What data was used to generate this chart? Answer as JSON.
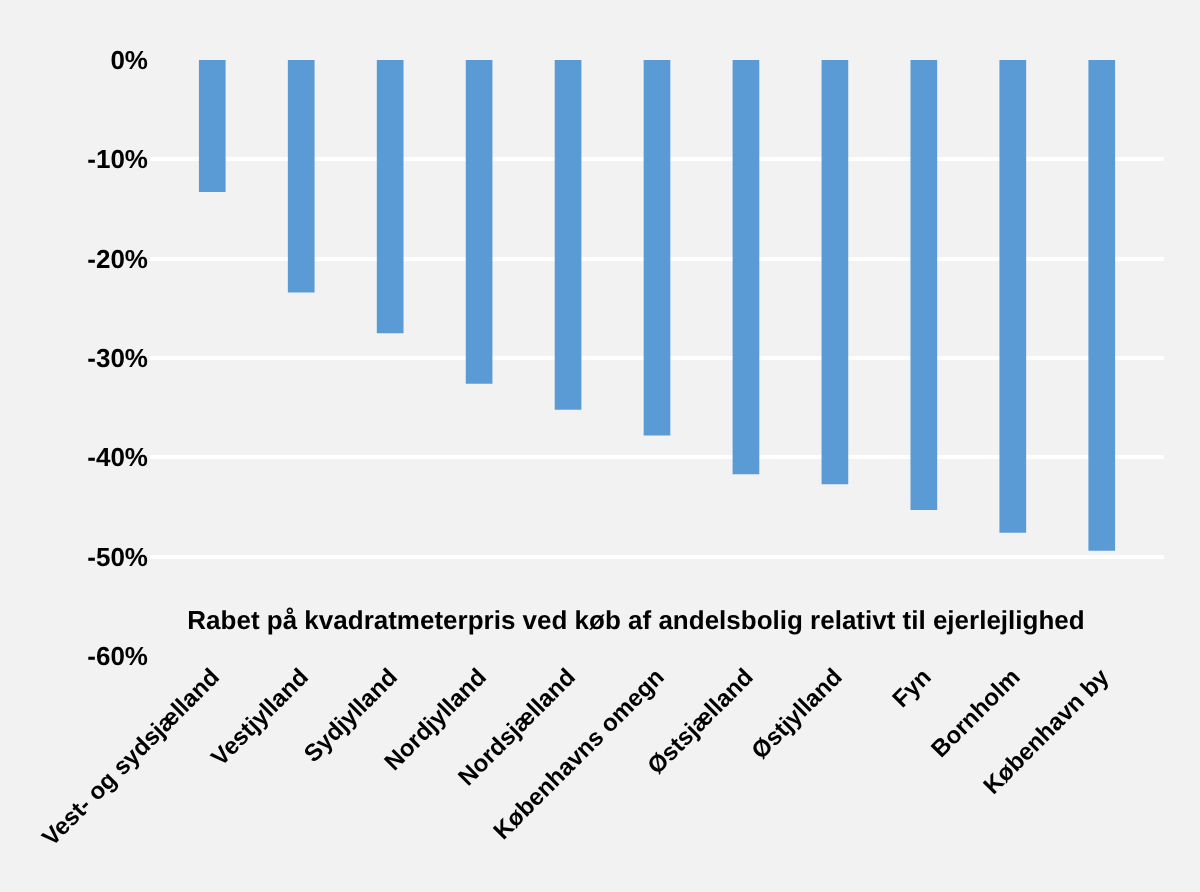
{
  "chart_data": {
    "type": "bar",
    "title": "Rabet på kvadratmeterpris ved køb af andelsbolig relativt til ejerlejlighed",
    "categories": [
      "Vest- og sydsjælland",
      "Vestjylland",
      "Sydjylland",
      "Nordjylland",
      "Nordsjælland",
      "Københavns omegn",
      "Østsjælland",
      "Østjylland",
      "Fyn",
      "Bornholm",
      "København by"
    ],
    "values": [
      -13.3,
      -23.4,
      -27.5,
      -32.6,
      -35.2,
      -37.8,
      -41.7,
      -42.7,
      -45.3,
      -47.6,
      -49.4
    ],
    "color": "#5b9bd5",
    "ylim": [
      -60,
      0
    ],
    "yticks": [
      {
        "value": 0,
        "label": "0%"
      },
      {
        "value": -10,
        "label": "-10%"
      },
      {
        "value": -20,
        "label": "-20%"
      },
      {
        "value": -30,
        "label": "-30%"
      },
      {
        "value": -40,
        "label": "-40%"
      },
      {
        "value": -50,
        "label": "-50%"
      },
      {
        "value": -60,
        "label": "-60%"
      }
    ],
    "grid": "y",
    "legend": false
  }
}
